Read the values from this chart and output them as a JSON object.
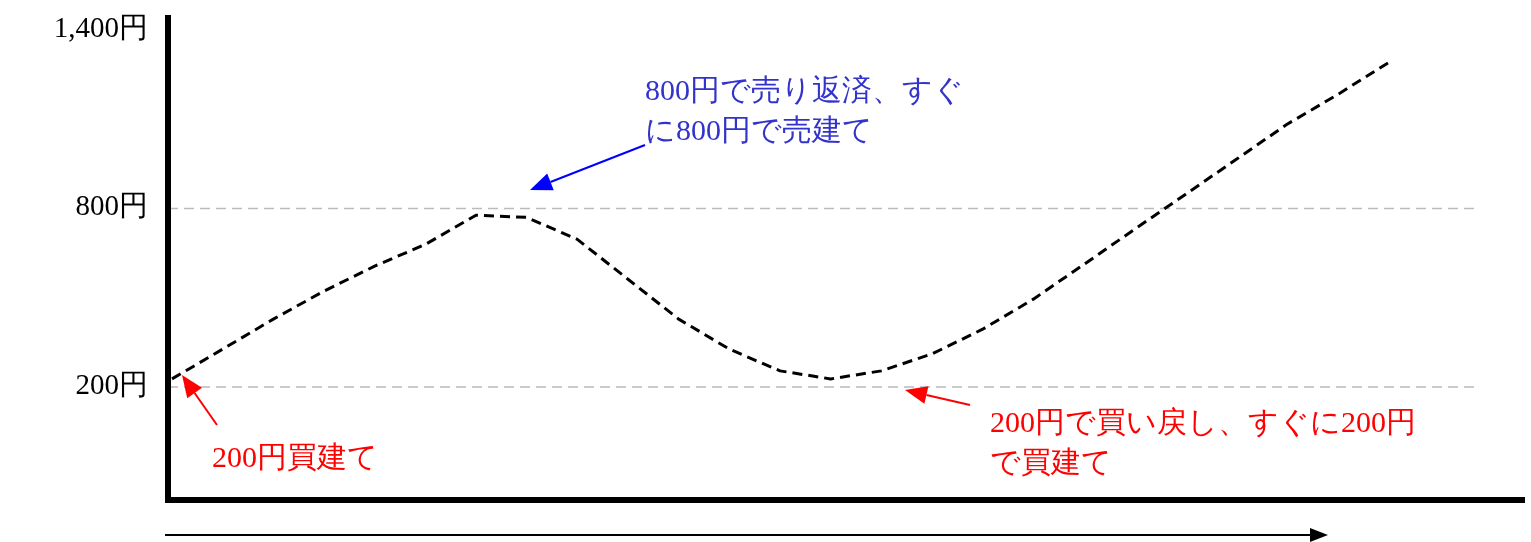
{
  "chart_data": {
    "type": "line",
    "categories": [
      null,
      null,
      null,
      null,
      null,
      null,
      null,
      null,
      null,
      null,
      null,
      null,
      null,
      null,
      null,
      null,
      null,
      null,
      null,
      null,
      null,
      null,
      null,
      null,
      null
    ],
    "series": [
      {
        "color": "#000000",
        "values": [
          227,
          327,
          428,
          522,
          606,
          679,
          777,
          770,
          696,
          562,
          428,
          327,
          254,
          227,
          254,
          311,
          394,
          495,
          612,
          730,
          847,
          964,
          1082,
          1182,
          1289
        ]
      }
    ],
    "line_style": "dashed",
    "marker": "none",
    "tick_labels": "y",
    "ylim": [
      -180,
      1450
    ],
    "yticks": [
      {
        "value": 200,
        "label": "200円"
      },
      {
        "value": 800,
        "label": "800円"
      },
      {
        "value": 1400,
        "label": "1,400円"
      }
    ],
    "ref_lines": [
      {
        "axis": "y",
        "value": 200,
        "color": "#bbbbbb",
        "line_style": "dashed"
      },
      {
        "axis": "y",
        "value": 800,
        "color": "#bbbbbb",
        "line_style": "dashed"
      }
    ],
    "annotations": [
      "800円で売り返済、すぐに800円で売建て",
      "200円買建て",
      "200円で買い戻し、すぐに200円で買建て"
    ]
  }
}
